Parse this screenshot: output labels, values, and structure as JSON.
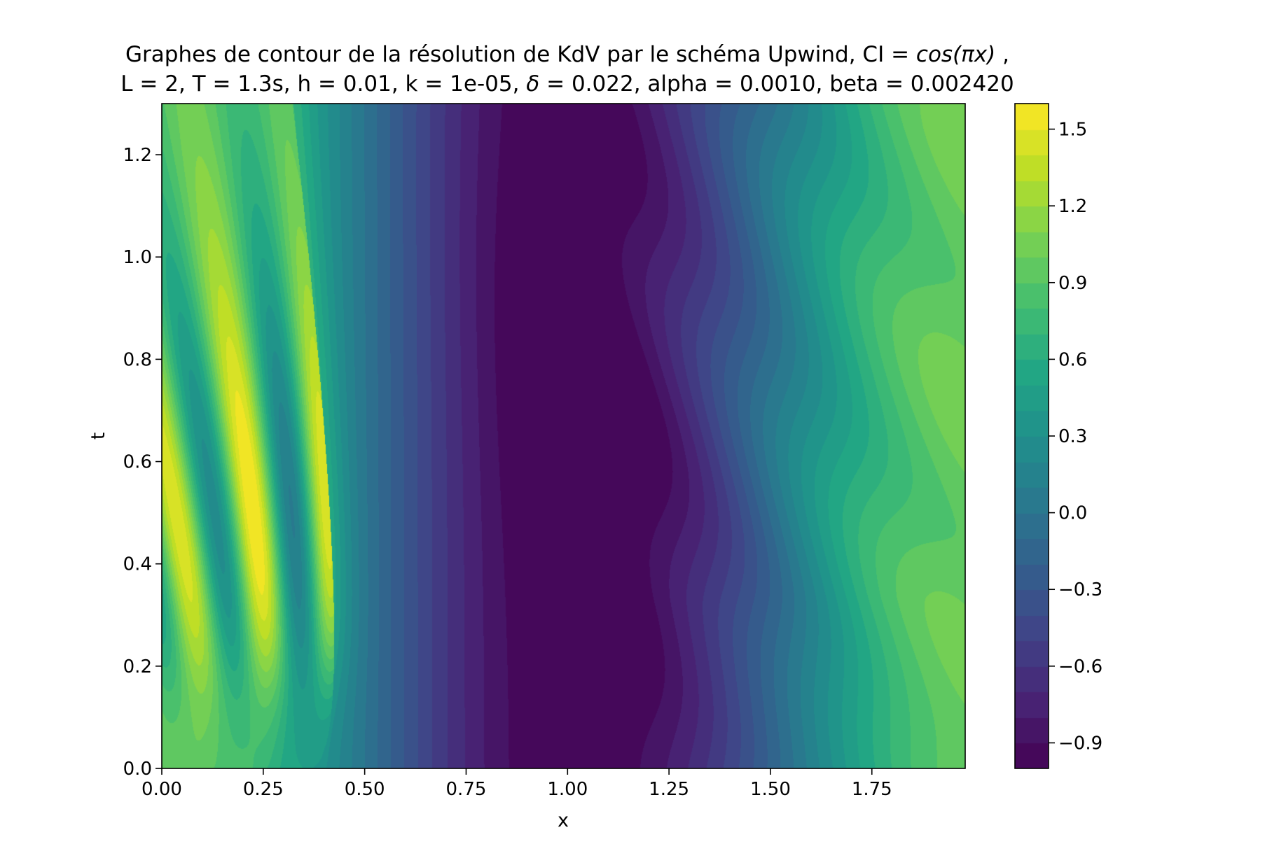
{
  "chart_data": {
    "type": "heatmap",
    "subtype": "filled-contour",
    "title_line1_prefix": "Graphes de contour de la résolution de KdV par le schéma Upwind, CI = ",
    "title_line1_math": "cos(πx)",
    "title_line1_suffix": " ,",
    "title_line2_prefix": "L = 2, T = 1.3s, h = 0.01, k = 1e-05, ",
    "title_line2_math": "δ",
    "title_line2_suffix": " = 0.022,  alpha = 0.0010, beta = 0.002420",
    "xlabel": "x",
    "ylabel": "t",
    "xlim": [
      0,
      1.98
    ],
    "ylim": [
      0,
      1.3
    ],
    "xticks": [
      0.0,
      0.25,
      0.5,
      0.75,
      1.0,
      1.25,
      1.5,
      1.75
    ],
    "xtick_labels": [
      "0.00",
      "0.25",
      "0.50",
      "0.75",
      "1.00",
      "1.25",
      "1.50",
      "1.75"
    ],
    "yticks": [
      0.0,
      0.2,
      0.4,
      0.6,
      0.8,
      1.0,
      1.2
    ],
    "ytick_labels": [
      "0.0",
      "0.2",
      "0.4",
      "0.6",
      "0.8",
      "1.0",
      "1.2"
    ],
    "colormap": "viridis",
    "levels_min": -1.0,
    "levels_max": 1.6,
    "levels_count": 26,
    "colorbar_ticks": [
      -0.9,
      -0.6,
      -0.3,
      0.0,
      0.3,
      0.6,
      0.9,
      1.2,
      1.5
    ],
    "colorbar_tick_labels": [
      "−0.9",
      "−0.6",
      "−0.3",
      "0.0",
      "0.3",
      "0.6",
      "0.9",
      "1.2",
      "1.5"
    ],
    "initial_condition": "cos(πx)",
    "L": 2,
    "T": 1.3,
    "h": 0.01,
    "k": 1e-05,
    "delta": 0.022,
    "alpha": 0.001,
    "beta": 0.00242
  }
}
